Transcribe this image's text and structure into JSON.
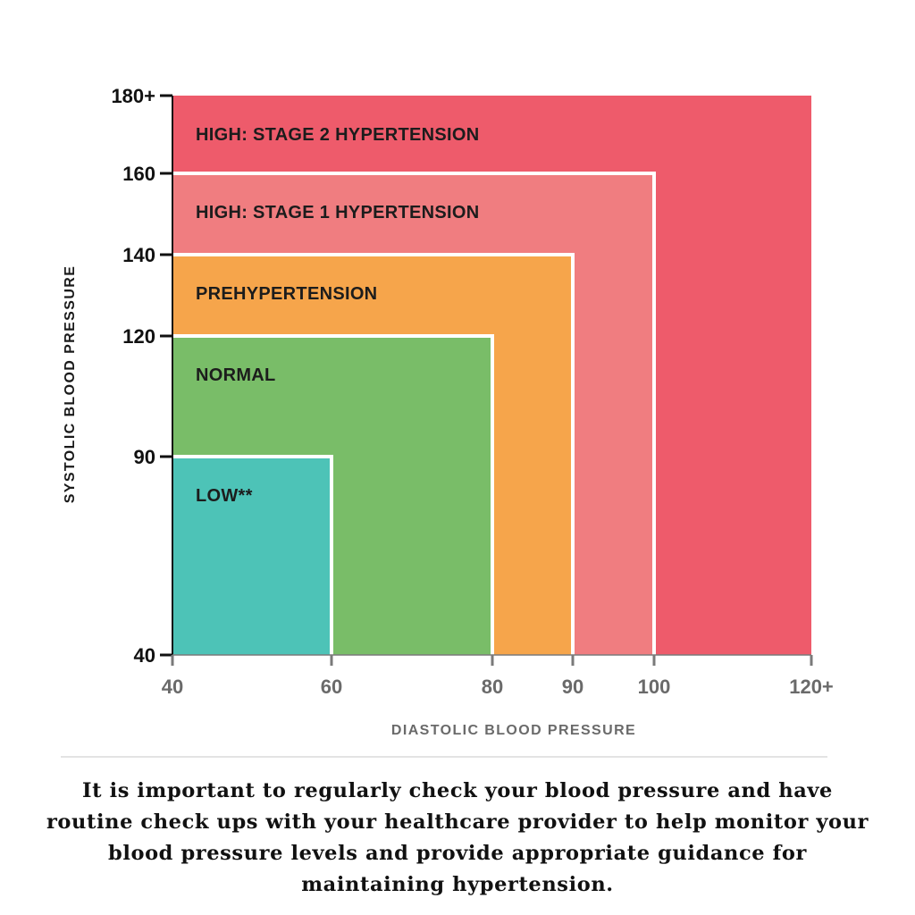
{
  "chart_data": {
    "type": "area",
    "title": "",
    "xlabel": "DIASTOLIC BLOOD PRESSURE",
    "ylabel": "SYSTOLIC BLOOD PRESSURE",
    "x_ticks": [
      {
        "value": 40,
        "label": "40"
      },
      {
        "value": 60,
        "label": "60"
      },
      {
        "value": 80,
        "label": "80"
      },
      {
        "value": 90,
        "label": "90"
      },
      {
        "value": 100,
        "label": "100"
      },
      {
        "value": 120,
        "label": "120+"
      }
    ],
    "y_ticks": [
      {
        "value": 40,
        "label": "40"
      },
      {
        "value": 90,
        "label": "90"
      },
      {
        "value": 120,
        "label": "120"
      },
      {
        "value": 140,
        "label": "140"
      },
      {
        "value": 160,
        "label": "160"
      },
      {
        "value": 180,
        "label": "180+"
      }
    ],
    "xlim": [
      40,
      120
    ],
    "ylim": [
      40,
      180
    ],
    "grid": false,
    "regions": [
      {
        "label": "HIGH: STAGE 2 HYPERTENSION",
        "diastolic_max": 120,
        "systolic_max": 180,
        "color": "#ee5b6b"
      },
      {
        "label": "HIGH: STAGE 1 HYPERTENSION",
        "diastolic_max": 100,
        "systolic_max": 160,
        "color": "#f07d80"
      },
      {
        "label": "PREHYPERTENSION",
        "diastolic_max": 90,
        "systolic_max": 140,
        "color": "#f6a54b"
      },
      {
        "label": "NORMAL",
        "diastolic_max": 80,
        "systolic_max": 120,
        "color": "#79bd68"
      },
      {
        "label": "LOW**",
        "diastolic_max": 60,
        "systolic_max": 90,
        "color": "#4dc3b7"
      }
    ]
  },
  "caption": "It is important to regularly check your blood pressure and have routine check ups with your healthcare provider to help monitor your blood pressure levels and provide appropriate guidance for maintaining hypertension."
}
